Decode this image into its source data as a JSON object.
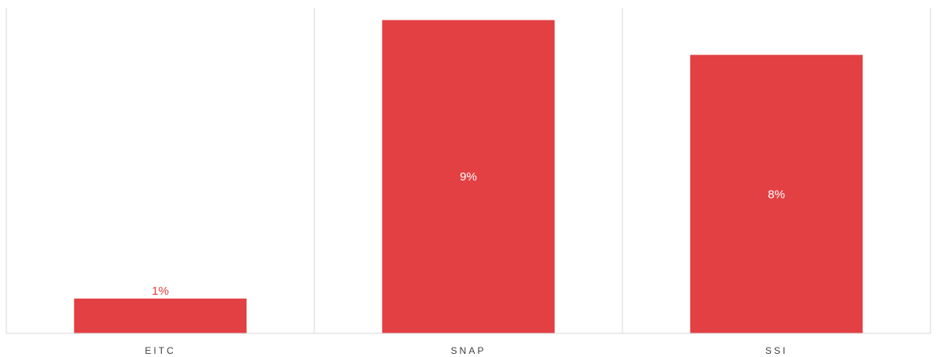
{
  "chart_data": {
    "type": "bar",
    "title": "",
    "xlabel": "",
    "ylabel": "",
    "categories": [
      "EITC",
      "SNAP",
      "SSI"
    ],
    "values": [
      1,
      9,
      8
    ],
    "data_labels": [
      "1%",
      "9%",
      "8%"
    ],
    "ylim": [
      0,
      9.35
    ],
    "grid": false,
    "legend": "none",
    "colors": {
      "bar": "#E34043",
      "label_inside": "#ffffff",
      "label_outside": "#E34043",
      "separator": "#d9d9d9",
      "axis": "#d9d9d9",
      "tick_text": "#404040"
    }
  }
}
